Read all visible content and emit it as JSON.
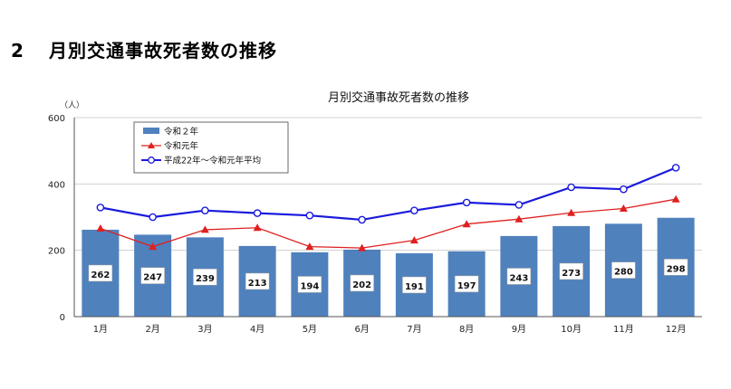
{
  "heading": {
    "number": "2",
    "text": "月別交通事故死者数の推移"
  },
  "colors": {
    "bar": "#4f81bd",
    "line_reiwa1": "#e02020",
    "line_avg": "#1a1adc",
    "grid": "#d0d0d0"
  },
  "chart_data": {
    "type": "bar",
    "title": "月別交通事故死者数の推移",
    "y_unit": "（人）",
    "categories": [
      "1月",
      "2月",
      "3月",
      "4月",
      "5月",
      "6月",
      "7月",
      "8月",
      "9月",
      "10月",
      "11月",
      "12月"
    ],
    "ylim": [
      0,
      600
    ],
    "yticks": [
      0,
      200,
      400,
      600
    ],
    "grid": true,
    "legend": "top-left",
    "series": [
      {
        "name": "令和２年",
        "type": "bar",
        "marker": "none",
        "values": [
          262,
          247,
          239,
          213,
          194,
          202,
          191,
          197,
          243,
          273,
          280,
          298
        ]
      },
      {
        "name": "令和元年",
        "type": "line",
        "marker": "triangle",
        "values": [
          266,
          211,
          262,
          268,
          211,
          207,
          230,
          279,
          294,
          313,
          326,
          354
        ]
      },
      {
        "name": "平成22年～令和元年平均",
        "type": "line",
        "marker": "circle",
        "values": [
          329,
          300,
          320,
          312,
          305,
          292,
          320,
          344,
          337,
          390,
          384,
          449
        ]
      }
    ]
  }
}
